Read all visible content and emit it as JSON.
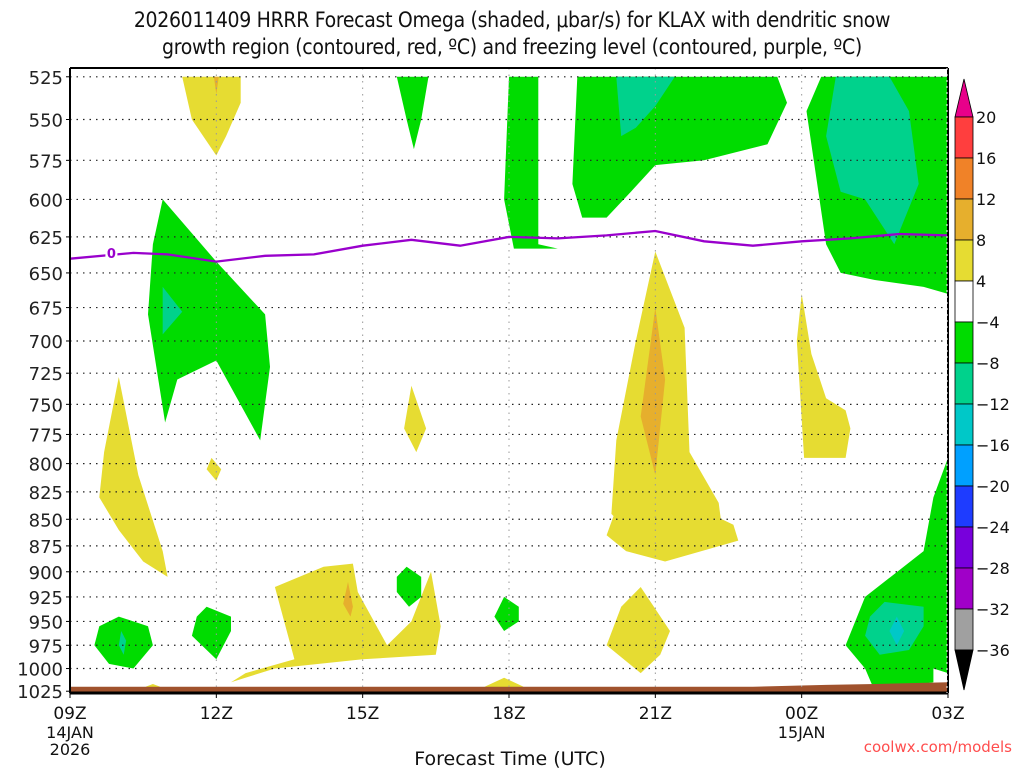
{
  "chart_data": {
    "type": "heatmap",
    "title_line1": "2026011409 HRRR Forecast Omega (shaded, μbar/s) for KLAX with dendritic snow",
    "title_line2": "growth region (contoured, red, ºC) and freezing level (contoured, purple, ºC)",
    "xlabel": "Forecast Time (UTC)",
    "ylabel": "",
    "y_axis": {
      "type": "log-pressure",
      "units": "hPa",
      "range": [
        1025,
        525
      ],
      "ticks": [
        525,
        550,
        575,
        600,
        625,
        650,
        675,
        700,
        725,
        750,
        775,
        800,
        825,
        850,
        875,
        900,
        925,
        950,
        975,
        1000,
        1025
      ]
    },
    "x_axis": {
      "range_hours": [
        0,
        18
      ],
      "ticks": [
        {
          "hour": 0,
          "label": "09Z",
          "sub1": "14JAN",
          "sub2": "2026"
        },
        {
          "hour": 3,
          "label": "12Z",
          "sub1": "",
          "sub2": ""
        },
        {
          "hour": 6,
          "label": "15Z",
          "sub1": "",
          "sub2": ""
        },
        {
          "hour": 9,
          "label": "18Z",
          "sub1": "",
          "sub2": ""
        },
        {
          "hour": 12,
          "label": "21Z",
          "sub1": "",
          "sub2": ""
        },
        {
          "hour": 15,
          "label": "00Z",
          "sub1": "15JAN",
          "sub2": ""
        },
        {
          "hour": 18,
          "label": "03Z",
          "sub1": "",
          "sub2": ""
        }
      ]
    },
    "grid": true,
    "colorbar": {
      "placement": "right",
      "levels": [
        "20",
        "16",
        "12",
        "8",
        "4",
        "−4",
        "−8",
        "−12",
        "−16",
        "−20",
        "−24",
        "−28",
        "−32",
        "−36"
      ],
      "colors": [
        "#e8008a",
        "#ff3e3e",
        "#f08228",
        "#e6af2d",
        "#e6dc32",
        "#ffffff",
        "#00dc00",
        "#00d28c",
        "#00c8c8",
        "#00a0ff",
        "#1e3cff",
        "#7800dc",
        "#a000c8",
        "#a0a0a0",
        "#000000"
      ]
    },
    "freezing_level": {
      "label": "0",
      "color": "#9900cc",
      "points_hour_hpa": [
        [
          0,
          640
        ],
        [
          1.3,
          636
        ],
        [
          2,
          637
        ],
        [
          3,
          642
        ],
        [
          4,
          638
        ],
        [
          5,
          637
        ],
        [
          6,
          631
        ],
        [
          7,
          627
        ],
        [
          8,
          631
        ],
        [
          9,
          625
        ],
        [
          10,
          626
        ],
        [
          11,
          624
        ],
        [
          12,
          621
        ],
        [
          13,
          628
        ],
        [
          14,
          631
        ],
        [
          15,
          628
        ],
        [
          16,
          626
        ],
        [
          17,
          623
        ],
        [
          18,
          624
        ]
      ]
    },
    "omega_regions": [
      {
        "level": "4 to 8",
        "color": "#e6dc32",
        "desc": "warm upward-ish near 12Z aloft",
        "pts": [
          [
            2.3,
            525
          ],
          [
            3.5,
            525
          ],
          [
            3.5,
            540
          ],
          [
            3.2,
            560
          ],
          [
            3,
            572
          ],
          [
            2.5,
            550
          ]
        ]
      },
      {
        "level": "8 to 12",
        "color": "#e6af2d",
        "pts": [
          [
            2.95,
            525
          ],
          [
            3.05,
            525
          ],
          [
            3,
            535
          ]
        ]
      },
      {
        "level": "-4 to -8",
        "color": "#00dc00",
        "pts": [
          [
            6.7,
            525
          ],
          [
            7.35,
            525
          ],
          [
            7.2,
            550
          ],
          [
            7.05,
            568
          ],
          [
            6.9,
            550
          ]
        ]
      },
      {
        "level": "-4 to -8",
        "color": "#00dc00",
        "pts": [
          [
            9.0,
            525
          ],
          [
            9.6,
            525
          ],
          [
            9.6,
            630
          ],
          [
            10,
            633
          ],
          [
            9.1,
            633
          ],
          [
            8.9,
            600
          ]
        ]
      },
      {
        "level": "-4 to -8",
        "color": "#00dc00",
        "pts": [
          [
            10.4,
            525
          ],
          [
            14.5,
            525
          ],
          [
            14.7,
            540
          ],
          [
            14.3,
            565
          ],
          [
            13,
            575
          ],
          [
            12,
            578
          ],
          [
            11.5,
            595
          ],
          [
            11,
            612
          ],
          [
            10.5,
            612
          ],
          [
            10.3,
            590
          ]
        ]
      },
      {
        "level": "-8 to -12",
        "color": "#00d28c",
        "pts": [
          [
            11.2,
            525
          ],
          [
            12.4,
            525
          ],
          [
            12,
            542
          ],
          [
            11.6,
            555
          ],
          [
            11.3,
            560
          ]
        ]
      },
      {
        "level": "-4 to -8",
        "color": "#00dc00",
        "pts": [
          [
            15.4,
            525
          ],
          [
            18,
            525
          ],
          [
            18,
            665
          ],
          [
            17.5,
            660
          ],
          [
            16.5,
            655
          ],
          [
            15.8,
            650
          ],
          [
            15.5,
            630
          ],
          [
            15.1,
            545
          ]
        ]
      },
      {
        "level": "-8 to -12",
        "color": "#00d28c",
        "pts": [
          [
            15.7,
            525
          ],
          [
            16.8,
            525
          ],
          [
            17.2,
            545
          ],
          [
            17.4,
            590
          ],
          [
            16.9,
            630
          ],
          [
            16.3,
            600
          ],
          [
            15.8,
            595
          ],
          [
            15.5,
            560
          ]
        ]
      },
      {
        "level": "-4 to -8",
        "color": "#00dc00",
        "pts": [
          [
            1.9,
            600
          ],
          [
            3,
            642
          ],
          [
            4,
            680
          ],
          [
            4.1,
            720
          ],
          [
            3.9,
            780
          ],
          [
            3.0,
            715
          ],
          [
            2.2,
            730
          ],
          [
            1.95,
            765
          ],
          [
            1.6,
            680
          ],
          [
            1.7,
            630
          ]
        ]
      },
      {
        "level": "-8 to -12",
        "color": "#00d28c",
        "pts": [
          [
            1.9,
            660
          ],
          [
            2.3,
            678
          ],
          [
            1.9,
            695
          ]
        ]
      },
      {
        "level": "4 to 8",
        "color": "#e6dc32",
        "pts": [
          [
            1,
            728
          ],
          [
            1.4,
            810
          ],
          [
            1.9,
            880
          ],
          [
            2,
            905
          ],
          [
            1.5,
            890
          ],
          [
            1,
            860
          ],
          [
            0.6,
            830
          ],
          [
            0.7,
            790
          ]
        ]
      },
      {
        "level": "4 to 8",
        "color": "#e6dc32",
        "pts": [
          [
            2.9,
            795
          ],
          [
            3.1,
            805
          ],
          [
            3.0,
            815
          ],
          [
            2.8,
            805
          ]
        ]
      },
      {
        "level": "4 to 8",
        "color": "#e6dc32",
        "pts": [
          [
            7,
            735
          ],
          [
            7.3,
            770
          ],
          [
            7.1,
            790
          ],
          [
            6.85,
            770
          ]
        ]
      },
      {
        "level": "4 to 8",
        "color": "#e6dc32",
        "pts": [
          [
            12,
            635
          ],
          [
            12.6,
            690
          ],
          [
            12.7,
            790
          ],
          [
            13.3,
            835
          ],
          [
            13.4,
            870
          ],
          [
            11.8,
            878
          ],
          [
            11.1,
            845
          ],
          [
            11.2,
            780
          ],
          [
            11.6,
            700
          ]
        ]
      },
      {
        "level": "8 to 12",
        "color": "#e6af2d",
        "pts": [
          [
            12,
            675
          ],
          [
            12.2,
            730
          ],
          [
            12,
            810
          ],
          [
            11.7,
            760
          ]
        ]
      },
      {
        "level": "4 to 8",
        "color": "#e6dc32",
        "pts": [
          [
            15,
            665
          ],
          [
            15.2,
            710
          ],
          [
            15.5,
            745
          ],
          [
            15.9,
            755
          ],
          [
            16,
            770
          ],
          [
            15.9,
            795
          ],
          [
            15.05,
            795
          ],
          [
            14.9,
            700
          ]
        ]
      },
      {
        "level": "4 to 8",
        "color": "#e6dc32",
        "pts": [
          [
            12.9,
            840
          ],
          [
            13.6,
            855
          ],
          [
            13.7,
            870
          ],
          [
            12.2,
            890
          ],
          [
            11.4,
            880
          ],
          [
            11,
            865
          ],
          [
            11.2,
            840
          ]
        ]
      },
      {
        "level": "4 to 8",
        "color": "#e6dc32",
        "pts": [
          [
            5.2,
            895
          ],
          [
            5.8,
            892
          ],
          [
            5.9,
            920
          ],
          [
            6.5,
            975
          ],
          [
            7,
            950
          ],
          [
            7.4,
            900
          ],
          [
            7.6,
            955
          ],
          [
            7.5,
            985
          ],
          [
            6,
            990
          ],
          [
            4.2,
            1000
          ],
          [
            3.3,
            1015
          ],
          [
            3.6,
            1005
          ],
          [
            4.6,
            990
          ],
          [
            4.2,
            915
          ]
        ]
      },
      {
        "level": "8 to 12",
        "color": "#e6af2d",
        "pts": [
          [
            5.7,
            910
          ],
          [
            5.8,
            935
          ],
          [
            5.75,
            945
          ],
          [
            5.6,
            932
          ]
        ]
      },
      {
        "level": "-4 to -8",
        "color": "#00dc00",
        "pts": [
          [
            6.9,
            895
          ],
          [
            7.2,
            905
          ],
          [
            7.2,
            925
          ],
          [
            6.95,
            935
          ],
          [
            6.7,
            920
          ],
          [
            6.7,
            905
          ]
        ]
      },
      {
        "level": "-4 to -8",
        "color": "#00dc00",
        "pts": [
          [
            8.9,
            925
          ],
          [
            9.2,
            935
          ],
          [
            9.2,
            950
          ],
          [
            8.9,
            960
          ],
          [
            8.7,
            945
          ]
        ]
      },
      {
        "level": "4 to 8",
        "color": "#e6dc32",
        "pts": [
          [
            11.7,
            915
          ],
          [
            12.3,
            960
          ],
          [
            12.1,
            985
          ],
          [
            11.7,
            1005
          ],
          [
            11.0,
            975
          ],
          [
            11.3,
            935
          ]
        ]
      },
      {
        "level": "4 to 8",
        "color": "#e6dc32",
        "pts": [
          [
            8.9,
            1010
          ],
          [
            9.3,
            1020
          ],
          [
            8.9,
            1025
          ],
          [
            8.5,
            1020
          ]
        ]
      },
      {
        "level": "4 to 8",
        "color": "#e6dc32",
        "pts": [
          [
            1.7,
            1017
          ],
          [
            1.85,
            1020
          ],
          [
            1.7,
            1023
          ],
          [
            1.55,
            1020
          ]
        ]
      },
      {
        "level": "-4 to -8",
        "color": "#00dc00",
        "pts": [
          [
            1.0,
            945
          ],
          [
            1.6,
            955
          ],
          [
            1.7,
            975
          ],
          [
            1.3,
            1000
          ],
          [
            0.8,
            995
          ],
          [
            0.5,
            975
          ],
          [
            0.6,
            955
          ]
        ]
      },
      {
        "level": "-8 to -12",
        "color": "#00d28c",
        "pts": [
          [
            1.05,
            960
          ],
          [
            1.15,
            970
          ],
          [
            1.1,
            985
          ],
          [
            1.0,
            975
          ]
        ]
      },
      {
        "level": "-4 to -8",
        "color": "#00dc00",
        "pts": [
          [
            2.8,
            935
          ],
          [
            3.3,
            945
          ],
          [
            3.3,
            960
          ],
          [
            3.0,
            990
          ],
          [
            2.5,
            965
          ],
          [
            2.6,
            945
          ]
        ]
      },
      {
        "level": "-4 to -8",
        "color": "#00dc00",
        "pts": [
          [
            18,
            795
          ],
          [
            18,
            1005
          ],
          [
            17.7,
            1000
          ],
          [
            17.7,
            1015
          ],
          [
            16.5,
            1025
          ],
          [
            16.3,
            1000
          ],
          [
            15.9,
            975
          ],
          [
            16.3,
            925
          ],
          [
            17.5,
            880
          ],
          [
            17.7,
            830
          ]
        ]
      },
      {
        "level": "-8 to -12",
        "color": "#00d28c",
        "pts": [
          [
            16.7,
            930
          ],
          [
            17.5,
            935
          ],
          [
            17.5,
            955
          ],
          [
            17.2,
            980
          ],
          [
            16.6,
            985
          ],
          [
            16.3,
            965
          ],
          [
            16.4,
            945
          ]
        ]
      },
      {
        "level": "-12 to -16",
        "color": "#00c8c8",
        "pts": [
          [
            16.95,
            945
          ],
          [
            17.1,
            960
          ],
          [
            16.95,
            975
          ],
          [
            16.8,
            960
          ]
        ]
      }
    ],
    "terrain": {
      "color": "#a0522d",
      "surface_hpa_start": 1020,
      "surface_hpa_end": 1015
    },
    "watermark": "coolwx.com/models"
  }
}
